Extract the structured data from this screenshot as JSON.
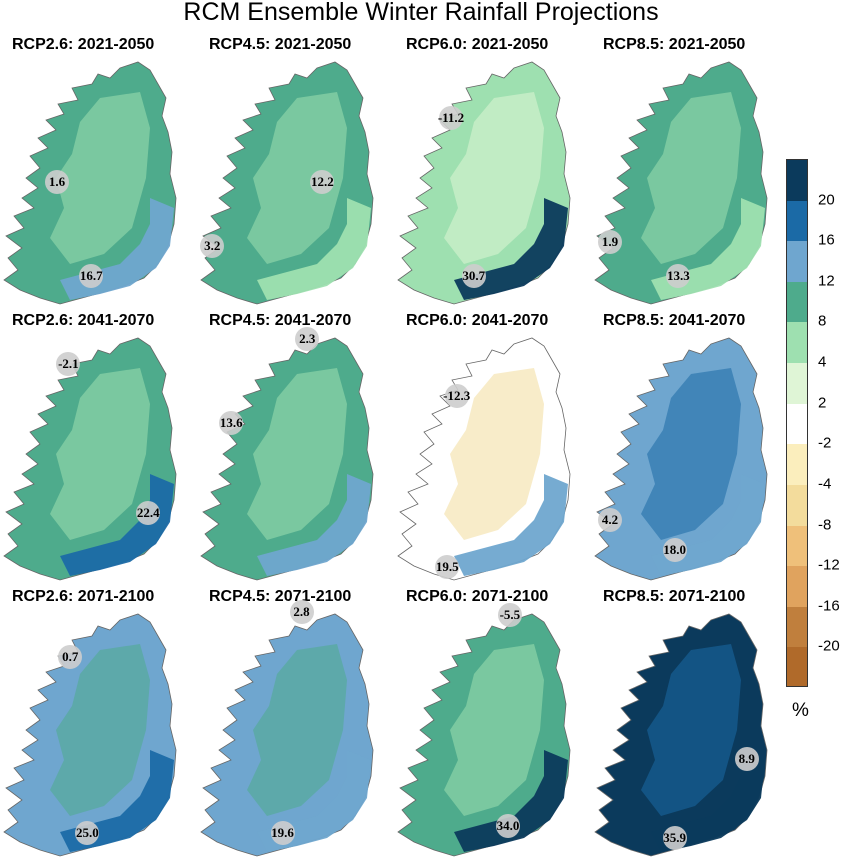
{
  "title": "RCM Ensemble Winter Rainfall Projections",
  "legend": {
    "unit": "%",
    "ticks": [
      "20",
      "16",
      "12",
      "8",
      "4",
      "2",
      "-2",
      "-4",
      "-8",
      "-12",
      "-16",
      "-20"
    ],
    "colors": [
      "#0b3a5c",
      "#1b6aa6",
      "#6fa6cf",
      "#4eab8c",
      "#9ee0b0",
      "#dff5d6",
      "#ffffff",
      "#fbeebd",
      "#f3dc9c",
      "#efc07a",
      "#e0a35e",
      "#c07f3d",
      "#b06a2a"
    ]
  },
  "panels": [
    {
      "title": "RCP2.6: 2021-2050",
      "fills": [
        "#4eab8c",
        "#6fa6cf",
        "#9ee0b0"
      ],
      "markers": [
        {
          "label": "1.6",
          "fx": 0.3,
          "fy": 0.5
        },
        {
          "label": "16.7",
          "fx": 0.48,
          "fy": 0.88
        }
      ]
    },
    {
      "title": "RCP4.5: 2021-2050",
      "fills": [
        "#4eab8c",
        "#9ee0b0",
        "#9ee0b0"
      ],
      "markers": [
        {
          "label": "12.2",
          "fx": 0.66,
          "fy": 0.5
        },
        {
          "label": "3.2",
          "fx": 0.08,
          "fy": 0.76
        }
      ]
    },
    {
      "title": "RCP6.0: 2021-2050",
      "fills": [
        "#9ee0b0",
        "#0b3a5c",
        "#dff5d6"
      ],
      "markers": [
        {
          "label": "-11.2",
          "fx": 0.3,
          "fy": 0.24
        },
        {
          "label": "30.7",
          "fx": 0.42,
          "fy": 0.88
        }
      ]
    },
    {
      "title": "RCP8.5: 2021-2050",
      "fills": [
        "#4eab8c",
        "#9ee0b0",
        "#9ee0b0"
      ],
      "markers": [
        {
          "label": "1.9",
          "fx": 0.1,
          "fy": 0.74
        },
        {
          "label": "13.3",
          "fx": 0.46,
          "fy": 0.88
        }
      ]
    },
    {
      "title": "RCP2.6: 2041-2070",
      "fills": [
        "#4eab8c",
        "#1b6aa6",
        "#9ee0b0"
      ],
      "markers": [
        {
          "label": "-2.1",
          "fx": 0.36,
          "fy": 0.12
        },
        {
          "label": "22.4",
          "fx": 0.78,
          "fy": 0.72
        }
      ]
    },
    {
      "title": "RCP4.5: 2041-2070",
      "fills": [
        "#4eab8c",
        "#6fa6cf",
        "#9ee0b0"
      ],
      "markers": [
        {
          "label": "2.3",
          "fx": 0.58,
          "fy": 0.02
        },
        {
          "label": "13.6",
          "fx": 0.18,
          "fy": 0.36
        }
      ]
    },
    {
      "title": "RCP6.0: 2041-2070",
      "fills": [
        "#ffffff",
        "#6fa6cf",
        "#f3dc9c"
      ],
      "markers": [
        {
          "label": "-12.3",
          "fx": 0.33,
          "fy": 0.25
        },
        {
          "label": "19.5",
          "fx": 0.28,
          "fy": 0.94
        }
      ]
    },
    {
      "title": "RCP8.5: 2041-2070",
      "fills": [
        "#6fa6cf",
        "#6fa6cf",
        "#1b6aa6"
      ],
      "markers": [
        {
          "label": "4.2",
          "fx": 0.1,
          "fy": 0.75
        },
        {
          "label": "18.0",
          "fx": 0.44,
          "fy": 0.87
        }
      ]
    },
    {
      "title": "RCP2.6: 2071-2100",
      "fills": [
        "#6fa6cf",
        "#1b6aa6",
        "#4eab8c"
      ],
      "markers": [
        {
          "label": "0.7",
          "fx": 0.37,
          "fy": 0.19
        },
        {
          "label": "25.0",
          "fx": 0.46,
          "fy": 0.9
        }
      ]
    },
    {
      "title": "RCP4.5: 2071-2100",
      "fills": [
        "#6fa6cf",
        "#6fa6cf",
        "#4eab8c"
      ],
      "markers": [
        {
          "label": "2.8",
          "fx": 0.55,
          "fy": 0.01
        },
        {
          "label": "19.6",
          "fx": 0.45,
          "fy": 0.9
        }
      ]
    },
    {
      "title": "RCP6.0: 2071-2100",
      "fills": [
        "#4eab8c",
        "#0b3a5c",
        "#9ee0b0"
      ],
      "markers": [
        {
          "label": "-5.5",
          "fx": 0.61,
          "fy": 0.02
        },
        {
          "label": "34.0",
          "fx": 0.6,
          "fy": 0.87
        }
      ]
    },
    {
      "title": "RCP8.5: 2071-2100",
      "fills": [
        "#0b3a5c",
        "#0b3a5c",
        "#1b6aa6"
      ],
      "markers": [
        {
          "label": "8.9",
          "fx": 0.82,
          "fy": 0.6
        },
        {
          "label": "35.9",
          "fx": 0.44,
          "fy": 0.92
        }
      ]
    }
  ]
}
